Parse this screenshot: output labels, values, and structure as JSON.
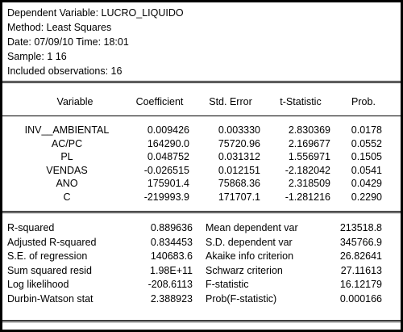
{
  "header": {
    "dependent": "Dependent Variable: LUCRO_LIQUIDO",
    "method": "Method: Least Squares",
    "date": "Date: 07/09/10   Time: 18:01",
    "sample": "Sample: 1 16",
    "obs": "Included observations: 16"
  },
  "columns": [
    "Variable",
    "Coefficient",
    "Std. Error",
    "t-Statistic",
    "Prob."
  ],
  "coefficients": [
    [
      "INV__AMBIENTAL",
      "0.009426",
      "0.003330",
      "2.830369",
      "0.0178"
    ],
    [
      "AC/PC",
      "164290.0",
      "75720.96",
      "2.169677",
      "0.0552"
    ],
    [
      "PL",
      "0.048752",
      "0.031312",
      "1.556971",
      "0.1505"
    ],
    [
      "VENDAS",
      "-0.026515",
      "0.012151",
      "-2.182042",
      "0.0541"
    ],
    [
      "ANO",
      "175901.4",
      "75868.36",
      "2.318509",
      "0.0429"
    ],
    [
      "C",
      "-219993.9",
      "171707.1",
      "-1.281216",
      "0.2290"
    ]
  ],
  "stats": [
    [
      "R-squared",
      "0.889636",
      "Mean dependent var",
      "213518.8"
    ],
    [
      "Adjusted R-squared",
      "0.834453",
      "S.D. dependent var",
      "345766.9"
    ],
    [
      "S.E. of regression",
      "140683.6",
      "Akaike info criterion",
      "26.82641"
    ],
    [
      "Sum squared resid",
      "1.98E+11",
      "Schwarz criterion",
      "27.11613"
    ],
    [
      "Log likelihood",
      "-208.6113",
      "F-statistic",
      "16.12179"
    ],
    [
      "Durbin-Watson stat",
      "2.388923",
      "Prob(F-statistic)",
      "0.000166"
    ]
  ]
}
